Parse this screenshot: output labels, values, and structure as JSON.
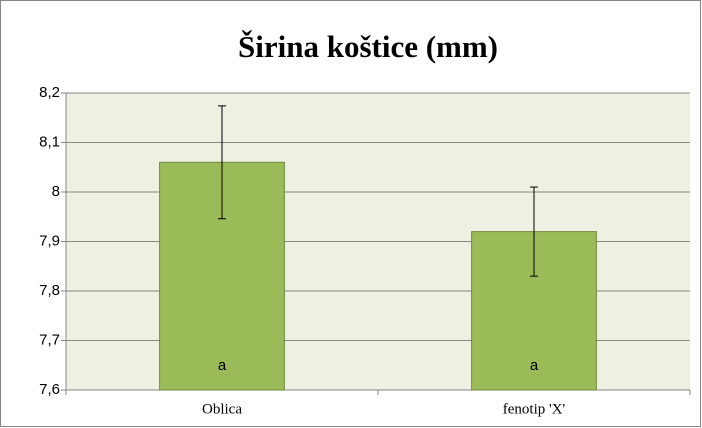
{
  "chart_data": {
    "type": "bar",
    "title": "Širina koštice (mm)",
    "categories": [
      "Oblica",
      "fenotip 'X'"
    ],
    "values": [
      8.06,
      7.92
    ],
    "errors": [
      0.114,
      0.09
    ],
    "bar_labels": [
      "a",
      "a"
    ],
    "color": "#9bbb59",
    "ylim": [
      7.6,
      8.2
    ],
    "yticks": [
      {
        "value": 7.6,
        "label": "7,6"
      },
      {
        "value": 7.7,
        "label": "7,7"
      },
      {
        "value": 7.8,
        "label": "7,8"
      },
      {
        "value": 7.9,
        "label": "7,9"
      },
      8,
      {
        "value": 8.1,
        "label": "8,1"
      },
      {
        "value": 8.2,
        "label": "8,2"
      }
    ],
    "grid": true
  }
}
